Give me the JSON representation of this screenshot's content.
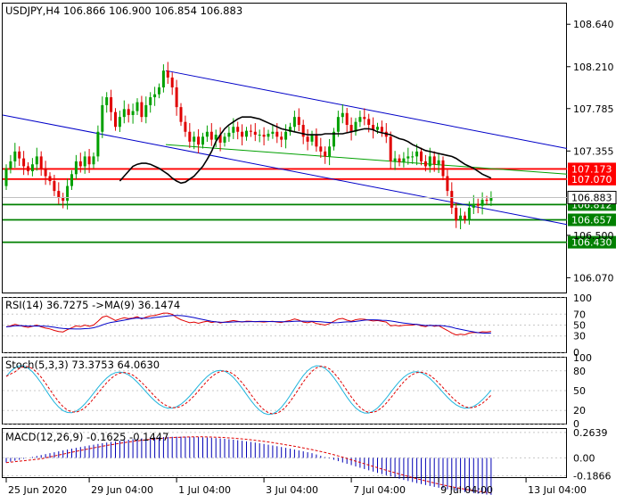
{
  "main_panel": {
    "header": "USDJPY,H4  106.866 106.900 106.854 106.883",
    "y_range": [
      105.92,
      108.85
    ],
    "axis_ticks": [
      {
        "value": 108.64,
        "label": "108.640"
      },
      {
        "value": 108.21,
        "label": "108.210"
      },
      {
        "value": 107.785,
        "label": "107.785"
      },
      {
        "value": 107.355,
        "label": "107.355"
      },
      {
        "value": 106.5,
        "label": "106.500"
      },
      {
        "value": 106.07,
        "label": "106.070"
      }
    ],
    "price_tag": {
      "value": 106.883,
      "label": "106.883"
    },
    "levels": [
      {
        "value": 107.173,
        "label": "107.173",
        "color": "#ff0000"
      },
      {
        "value": 107.07,
        "label": "107.070",
        "color": "#ff0000"
      },
      {
        "value": 106.812,
        "label": "106.812",
        "color": "#008000"
      },
      {
        "value": 106.657,
        "label": "106.657",
        "color": "#008000"
      },
      {
        "value": 106.43,
        "label": "106.430",
        "color": "#008000"
      }
    ]
  },
  "rsi_panel": {
    "header": "RSI(14) 36.7275  ->MA(9) 36.1474",
    "y_range": [
      0,
      100
    ],
    "axis_ticks": [
      {
        "value": 100,
        "label": "100"
      },
      {
        "value": 70,
        "label": "70"
      },
      {
        "value": 50,
        "label": "50"
      },
      {
        "value": 30,
        "label": "30"
      },
      {
        "value": 0,
        "label": "0"
      }
    ]
  },
  "stoch_panel": {
    "header": "Stoch(5,3,3) 73.3753 64.0630",
    "y_range": [
      0,
      100
    ],
    "axis_ticks": [
      {
        "value": 100,
        "label": "100"
      },
      {
        "value": 80,
        "label": "80"
      },
      {
        "value": 50,
        "label": "50"
      },
      {
        "value": 20,
        "label": "20"
      },
      {
        "value": 0,
        "label": "0"
      }
    ]
  },
  "macd_panel": {
    "header": "MACD(12,26,9) -0.1625 -0.1447",
    "y_range": [
      -0.2,
      0.3
    ],
    "axis_ticks": [
      {
        "value": 0.2639,
        "label": "0.2639"
      },
      {
        "value": 0.0,
        "label": "0.00"
      },
      {
        "value": -0.1866,
        "label": "-0.1866"
      }
    ]
  },
  "time_axis": [
    {
      "label": "25 Jun 2020",
      "bar": 0
    },
    {
      "label": "29 Jun 04:00",
      "bar": 19
    },
    {
      "label": "1 Jul 04:00",
      "bar": 39
    },
    {
      "label": "3 Jul 04:00",
      "bar": 59
    },
    {
      "label": "7 Jul 04:00",
      "bar": 79
    },
    {
      "label": "9 Jul 04:00",
      "bar": 99
    },
    {
      "label": "13 Jul 04:00",
      "bar": 119
    }
  ],
  "colors": {
    "bull": "#00a000",
    "bear": "#e00000",
    "ma": "#000000",
    "channel": "#0000c8",
    "trend": "#00a000",
    "rsi": "#0000c8",
    "signal": "#e00000",
    "stoch_main": "#1eb4dc",
    "macd_hist": "#0000b4"
  },
  "chart_data": {
    "type": "candlestick",
    "symbol": "USDJPY",
    "timeframe": "H4",
    "closes": [
      107.18,
      107.25,
      107.35,
      107.28,
      107.2,
      107.15,
      107.22,
      107.3,
      107.18,
      107.1,
      107.05,
      106.95,
      106.88,
      106.85,
      107.0,
      107.12,
      107.25,
      107.2,
      107.3,
      107.22,
      107.3,
      107.55,
      107.82,
      107.9,
      107.75,
      107.6,
      107.7,
      107.78,
      107.72,
      107.76,
      107.85,
      107.7,
      107.82,
      107.9,
      107.93,
      108.0,
      108.17,
      108.1,
      108.0,
      107.8,
      107.65,
      107.55,
      107.45,
      107.5,
      107.42,
      107.5,
      107.55,
      107.47,
      107.52,
      107.44,
      107.5,
      107.54,
      107.6,
      107.55,
      107.5,
      107.56,
      107.55,
      107.52,
      107.52,
      107.5,
      107.53,
      107.55,
      107.5,
      107.47,
      107.55,
      107.6,
      107.7,
      107.62,
      107.5,
      107.45,
      107.52,
      107.4,
      107.35,
      107.3,
      107.4,
      107.55,
      107.7,
      107.74,
      107.62,
      107.55,
      107.65,
      107.7,
      107.68,
      107.62,
      107.57,
      107.6,
      107.55,
      107.5,
      107.25,
      107.28,
      107.24,
      107.28,
      107.3,
      107.3,
      107.35,
      107.25,
      107.2,
      107.3,
      107.22,
      107.26,
      107.1,
      106.95,
      106.78,
      106.65,
      106.7,
      106.66,
      106.78,
      106.82,
      106.8,
      106.86,
      106.85,
      106.883
    ],
    "ma": [
      107.05,
      107.1,
      107.15,
      107.2,
      107.22,
      107.23,
      107.23,
      107.22,
      107.2,
      107.18,
      107.15,
      107.12,
      107.08,
      107.05,
      107.03,
      107.04,
      107.07,
      107.1,
      107.15,
      107.2,
      107.27,
      107.35,
      107.45,
      107.52,
      107.58,
      107.62,
      107.65,
      107.68,
      107.7,
      107.7,
      107.7,
      107.69,
      107.68,
      107.66,
      107.64,
      107.62,
      107.6,
      107.58,
      107.57,
      107.56,
      107.55,
      107.54,
      107.53,
      107.52,
      107.52,
      107.52,
      107.52,
      107.53,
      107.53,
      107.53,
      107.53,
      107.53,
      107.54,
      107.55,
      107.56,
      107.57,
      107.58,
      107.58,
      107.57,
      107.55,
      107.54,
      107.53,
      107.52,
      107.5,
      107.48,
      107.47,
      107.45,
      107.42,
      107.4,
      107.38,
      107.36,
      107.35,
      107.34,
      107.33,
      107.32,
      107.31,
      107.3,
      107.28,
      107.25,
      107.22,
      107.2,
      107.18,
      107.15,
      107.12,
      107.1,
      107.08
    ]
  }
}
